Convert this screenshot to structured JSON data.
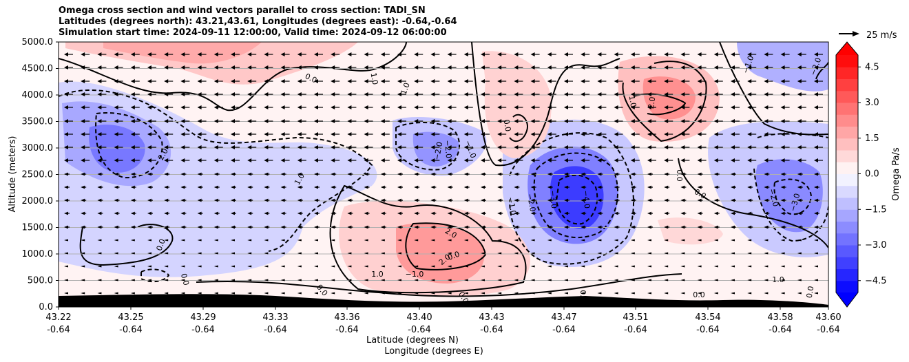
{
  "title_lines": [
    "Omega cross section and wind vectors parallel to cross section: TADI_SN",
    "Latitudes (degrees north): 43.21,43.61, Longitudes (degrees east): -0.64,-0.64",
    "Simulation start time: 2024-09-11 12:00:00, Valid time: 2024-09-12 06:00:00"
  ],
  "chart_data": {
    "type": "heatmap",
    "ylabel": "Altitude (meters)",
    "xlabel": "Latitude (degrees N)",
    "xlabel2": "Longitude (degrees E)",
    "ylim": [
      0,
      5000
    ],
    "y_ticks": [
      "0.0",
      "500.0",
      "1000.0",
      "1500.0",
      "2000.0",
      "2500.0",
      "3000.0",
      "3500.0",
      "4000.0",
      "4500.0",
      "5000.0"
    ],
    "x_ticks_lat": [
      "43.22",
      "43.25",
      "43.29",
      "43.33",
      "43.36",
      "43.40",
      "43.43",
      "43.47",
      "43.51",
      "43.54",
      "43.58",
      "43.60"
    ],
    "x_ticks_lon": [
      "-0.64",
      "-0.64",
      "-0.64",
      "-0.64",
      "-0.64",
      "-0.64",
      "-0.64",
      "-0.64",
      "-0.64",
      "-0.64",
      "-0.64",
      "-0.64"
    ],
    "grid": "horizontal",
    "colorbar": {
      "label": "Omega Pa/s",
      "ticks": [
        "4.5",
        "3.0",
        "1.5",
        "0.0",
        "−1.5",
        "−3.0",
        "−4.5"
      ],
      "range": [
        -5.0,
        5.0
      ],
      "colormap": "bwr",
      "extend": "both"
    },
    "contour_labels": [
      "1.0",
      "0.0",
      "1.0",
      "0.0",
      "2.0",
      "−2.0",
      "−1.0",
      "−2.0",
      "1.0",
      "−1.0",
      "−2.0",
      "−3.0",
      "−4.0",
      "0.0",
      "−1.0",
      "−2.0",
      "−3.0",
      "0.0",
      "0.0",
      "1.0",
      "2.0",
      "2.0",
      "0.0",
      "2.0",
      "0.0",
      "0.0",
      "0.0",
      "0.0",
      "0.0",
      "−2.0",
      "1.0",
      "0.0",
      "−1.0",
      "1.0"
    ],
    "vector_key": "25 m/s"
  }
}
